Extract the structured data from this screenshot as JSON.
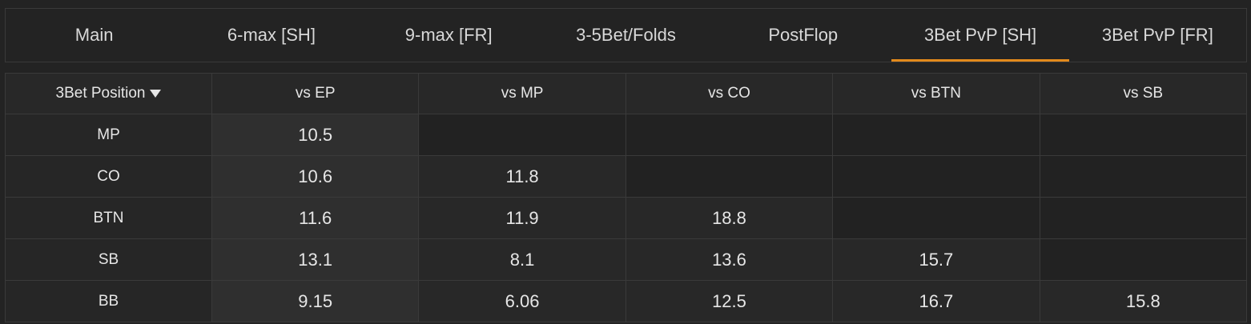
{
  "tabs": [
    {
      "label": "Main"
    },
    {
      "label": "6-max [SH]"
    },
    {
      "label": "9-max [FR]"
    },
    {
      "label": "3-5Bet/Folds"
    },
    {
      "label": "PostFlop"
    },
    {
      "label": "3Bet PvP [SH]",
      "active": true
    },
    {
      "label": "3Bet PvP [FR]"
    }
  ],
  "accent_color": "#e38a1c",
  "table": {
    "corner_label": "3Bet Position",
    "sort_icon": "chevron-down-icon",
    "columns": [
      "vs EP",
      "vs MP",
      "vs CO",
      "vs BTN",
      "vs SB"
    ],
    "rows": [
      {
        "label": "MP",
        "cells": [
          "10.5",
          "",
          "",
          "",
          ""
        ]
      },
      {
        "label": "CO",
        "cells": [
          "10.6",
          "11.8",
          "",
          "",
          ""
        ]
      },
      {
        "label": "BTN",
        "cells": [
          "11.6",
          "11.9",
          "18.8",
          "",
          ""
        ]
      },
      {
        "label": "SB",
        "cells": [
          "13.1",
          "8.1",
          "13.6",
          "15.7",
          ""
        ]
      },
      {
        "label": "BB",
        "cells": [
          "9.15",
          "6.06",
          "12.5",
          "16.7",
          "15.8"
        ]
      }
    ]
  }
}
